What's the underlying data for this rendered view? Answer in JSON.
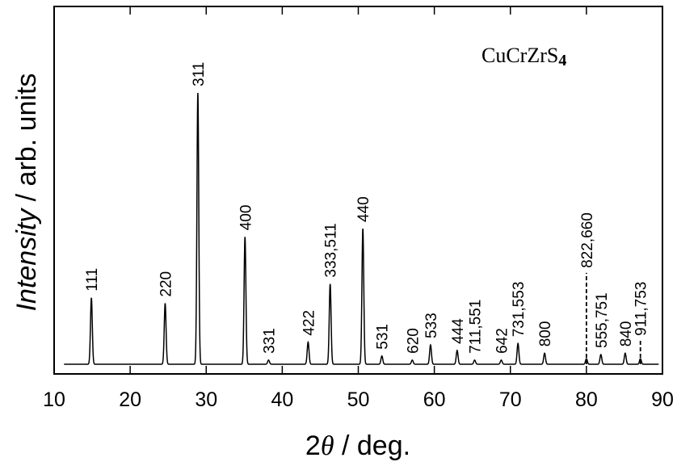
{
  "chart_data": {
    "type": "line",
    "xlabel": {
      "symbol_prefix": "2",
      "symbol": "θ",
      "unit": "  /  deg."
    },
    "ylabel": {
      "italic": "Intensity",
      "rest": " / arb. units"
    },
    "annotation": {
      "main": "CuCrZrS",
      "sub": "4"
    },
    "xlim": [
      10,
      90
    ],
    "ylim": [
      0,
      1.0
    ],
    "x_ticks": [
      10,
      20,
      30,
      40,
      50,
      60,
      70,
      80,
      90
    ],
    "baseline": 0.02,
    "series": [
      {
        "peaks": [
          {
            "x": 14.9,
            "y": 0.26,
            "label": "111"
          },
          {
            "x": 24.6,
            "y": 0.24,
            "label": "220"
          },
          {
            "x": 28.9,
            "y": 1.0,
            "label": "311"
          },
          {
            "x": 35.1,
            "y": 0.48,
            "label": "400"
          },
          {
            "x": 38.2,
            "y": 0.035,
            "label": "331"
          },
          {
            "x": 43.4,
            "y": 0.1,
            "label": "422"
          },
          {
            "x": 46.3,
            "y": 0.31,
            "label": "333,511"
          },
          {
            "x": 50.6,
            "y": 0.51,
            "label": "440"
          },
          {
            "x": 53.1,
            "y": 0.05,
            "label": "531"
          },
          {
            "x": 57.1,
            "y": 0.035,
            "label": "620"
          },
          {
            "x": 59.5,
            "y": 0.09,
            "label": "533"
          },
          {
            "x": 63.0,
            "y": 0.07,
            "label": "444"
          },
          {
            "x": 65.3,
            "y": 0.035,
            "label": "711,551"
          },
          {
            "x": 68.8,
            "y": 0.035,
            "label": "642"
          },
          {
            "x": 71.0,
            "y": 0.095,
            "label": "731,553"
          },
          {
            "x": 74.5,
            "y": 0.06,
            "label": "800"
          },
          {
            "x": 81.9,
            "y": 0.055,
            "label": "555,751"
          },
          {
            "x": 85.1,
            "y": 0.06,
            "label": "840"
          }
        ],
        "dashed_markers": [
          {
            "x": 80.0,
            "y": 0.35,
            "label": "822,660"
          },
          {
            "x": 87.1,
            "y": 0.105,
            "label": "911,753"
          }
        ]
      }
    ]
  }
}
